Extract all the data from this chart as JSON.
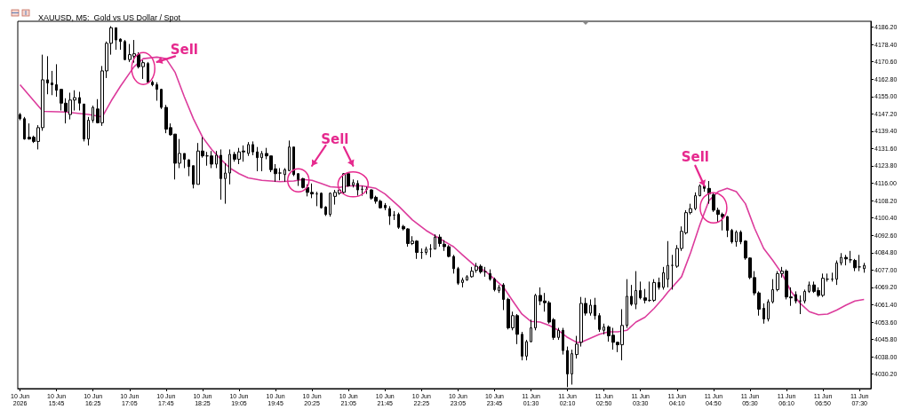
{
  "chart_data": {
    "type": "candlestick",
    "title": "XAUUSD, M5:  Gold vs US Dollar / Spot",
    "categories": [
      "10 Jun 2026",
      null,
      null,
      null,
      null,
      null,
      null,
      null,
      "10 Jun 15:45",
      null,
      null,
      null,
      null,
      null,
      null,
      null,
      "10 Jun 16:25",
      null,
      null,
      null,
      null,
      null,
      null,
      null,
      "10 Jun 17:05",
      null,
      null,
      null,
      null,
      null,
      null,
      null,
      "10 Jun 17:45",
      null,
      null,
      null,
      null,
      null,
      null,
      null,
      "10 Jun 18:25",
      null,
      null,
      null,
      null,
      null,
      null,
      null,
      "10 Jun 19:05",
      null,
      null,
      null,
      null,
      null,
      null,
      null,
      "10 Jun 19:45",
      null,
      null,
      null,
      null,
      null,
      null,
      null,
      "10 Jun 20:25",
      null,
      null,
      null,
      null,
      null,
      null,
      null,
      "10 Jun 21:05",
      null,
      null,
      null,
      null,
      null,
      null,
      null,
      "10 Jun 21:45",
      null,
      null,
      null,
      null,
      null,
      null,
      null,
      "10 Jun 22:25",
      null,
      null,
      null,
      null,
      null,
      null,
      null,
      "10 Jun 23:05",
      null,
      null,
      null,
      null,
      null,
      null,
      null,
      "10 Jun 23:45",
      null,
      null,
      null,
      null,
      null,
      null,
      null,
      "11 Jun 01:30",
      null,
      null,
      null,
      null,
      null,
      null,
      null,
      "11 Jun 02:10",
      null,
      null,
      null,
      null,
      null,
      null,
      null,
      "11 Jun 02:50",
      null,
      null,
      null,
      null,
      null,
      null,
      null,
      "11 Jun 03:30",
      null,
      null,
      null,
      null,
      null,
      null,
      null,
      "11 Jun 04:10",
      null,
      null,
      null,
      null,
      null,
      null,
      null,
      "11 Jun 04:50",
      null,
      null,
      null,
      null,
      null,
      null,
      null,
      "11 Jun 05:30",
      null,
      null,
      null,
      null,
      null,
      null,
      null,
      "11 Jun 06:10",
      null,
      null,
      null,
      null,
      null,
      null,
      null,
      "11 Jun 06:50",
      null,
      null,
      null,
      null,
      null,
      null,
      null,
      "11 Jun 07:30",
      null
    ],
    "series": [
      {
        "ohlc": [
          [
            4146.9,
            4147.6,
            4144.3,
            4145.0
          ],
          [
            4145.0,
            4145.8,
            4135.6,
            4135.9
          ],
          [
            4136.7,
            4142.9,
            4135.6,
            4135.9
          ],
          [
            4136.7,
            4137.4,
            4134.1,
            4134.8
          ],
          [
            4134.8,
            4142.1,
            4131.2,
            4141.0
          ],
          [
            4141.0,
            4173.8,
            4139.6,
            4162.5
          ],
          [
            4162.5,
            4173.1,
            4156.0,
            4161.1
          ],
          [
            4161.1,
            4166.5,
            4155.6,
            4160.3
          ],
          [
            4160.3,
            4169.5,
            4154.9,
            4157.8
          ],
          [
            4158.2,
            4158.2,
            4148.7,
            4152.0
          ],
          [
            4152.0,
            4154.2,
            4142.9,
            4148.3
          ],
          [
            4146.9,
            4156.7,
            4144.7,
            4153.4
          ],
          [
            4153.4,
            4157.8,
            4148.7,
            4154.5
          ],
          [
            4154.5,
            4157.1,
            4148.7,
            4152.0
          ],
          [
            4151.6,
            4151.6,
            4134.8,
            4135.9
          ],
          [
            4135.9,
            4145.8,
            4133.0,
            4144.3
          ],
          [
            4144.3,
            4150.9,
            4143.2,
            4150.1
          ],
          [
            4149.4,
            4153.8,
            4142.9,
            4143.2
          ],
          [
            4143.2,
            4168.7,
            4141.8,
            4166.5
          ],
          [
            4166.5,
            4179.7,
            4163.3,
            4178.9
          ],
          [
            4178.9,
            4186.6,
            4173.8,
            4185.9
          ],
          [
            4185.9,
            4185.9,
            4176.0,
            4180.4
          ],
          [
            4180.8,
            4181.1,
            4176.0,
            4179.7
          ],
          [
            4179.7,
            4180.4,
            4171.3,
            4171.6
          ],
          [
            4171.6,
            4178.6,
            4170.5,
            4173.8
          ],
          [
            4173.1,
            4180.4,
            4170.2,
            4174.2
          ],
          [
            4173.8,
            4174.9,
            4167.6,
            4168.4
          ],
          [
            4168.4,
            4171.3,
            4162.9,
            4170.2
          ],
          [
            4169.8,
            4170.5,
            4161.1,
            4161.4
          ],
          [
            4161.4,
            4162.2,
            4159.6,
            4160.3
          ],
          [
            4160.3,
            4161.4,
            4153.1,
            4158.2
          ],
          [
            4158.2,
            4158.5,
            4149.4,
            4150.1
          ],
          [
            4150.1,
            4151.2,
            4138.5,
            4140.3
          ],
          [
            4141.0,
            4142.9,
            4137.4,
            4137.8
          ],
          [
            4138.1,
            4138.1,
            4117.7,
            4125.0
          ],
          [
            4125.0,
            4135.9,
            4122.8,
            4129.4
          ],
          [
            4129.4,
            4129.4,
            4122.8,
            4126.8
          ],
          [
            4126.5,
            4126.8,
            4119.2,
            4123.5
          ],
          [
            4123.9,
            4123.9,
            4113.7,
            4115.5
          ],
          [
            4115.5,
            4134.1,
            4115.5,
            4130.5
          ],
          [
            4130.5,
            4136.7,
            4127.5,
            4128.3
          ],
          [
            4128.3,
            4130.1,
            4123.9,
            4128.3
          ],
          [
            4128.3,
            4130.5,
            4122.8,
            4124.6
          ],
          [
            4124.6,
            4130.5,
            4122.8,
            4128.6
          ],
          [
            4128.6,
            4131.2,
            4108.6,
            4118.1
          ],
          [
            4118.1,
            4125.0,
            4106.8,
            4120.6
          ],
          [
            4120.6,
            4131.2,
            4115.5,
            4129.0
          ],
          [
            4129.0,
            4130.1,
            4125.7,
            4126.8
          ],
          [
            4126.8,
            4131.9,
            4124.6,
            4130.1
          ],
          [
            4130.5,
            4133.0,
            4125.7,
            4130.1
          ],
          [
            4129.4,
            4134.5,
            4128.3,
            4133.4
          ],
          [
            4133.4,
            4134.8,
            4128.6,
            4130.1
          ],
          [
            4130.1,
            4132.3,
            4121.4,
            4127.5
          ],
          [
            4127.5,
            4130.5,
            4121.4,
            4129.4
          ],
          [
            4129.4,
            4131.9,
            4126.8,
            4128.3
          ],
          [
            4128.3,
            4128.3,
            4121.0,
            4122.1
          ],
          [
            4122.5,
            4124.6,
            4116.7,
            4120.3
          ],
          [
            4120.6,
            4122.8,
            4117.3,
            4120.6
          ],
          [
            4119.9,
            4122.8,
            4116.7,
            4122.1
          ],
          [
            4121.7,
            4135.2,
            4121.4,
            4132.3
          ],
          [
            4132.3,
            4132.3,
            4119.2,
            4119.9
          ],
          [
            4120.3,
            4120.6,
            4114.8,
            4117.7
          ],
          [
            4118.1,
            4118.4,
            4113.7,
            4114.1
          ],
          [
            4114.1,
            4115.5,
            4110.1,
            4111.9
          ],
          [
            4111.9,
            4115.9,
            4109.3,
            4111.2
          ],
          [
            4111.2,
            4112.2,
            4105.7,
            4111.2
          ],
          [
            4111.5,
            4111.9,
            4104.6,
            4105.0
          ],
          [
            4105.3,
            4105.7,
            4101.3,
            4102.0
          ],
          [
            4102.0,
            4111.9,
            4101.0,
            4111.5
          ],
          [
            4110.1,
            4113.0,
            4106.4,
            4111.9
          ],
          [
            4111.5,
            4113.7,
            4110.8,
            4113.0
          ],
          [
            4111.9,
            4120.6,
            4111.2,
            4120.3
          ],
          [
            4120.3,
            4120.6,
            4114.4,
            4114.8
          ],
          [
            4115.2,
            4117.7,
            4114.1,
            4116.3
          ],
          [
            4115.9,
            4117.3,
            4110.4,
            4113.0
          ],
          [
            4113.3,
            4114.8,
            4110.4,
            4113.3
          ],
          [
            4113.3,
            4114.4,
            4111.2,
            4113.3
          ],
          [
            4113.0,
            4113.3,
            4108.6,
            4109.3
          ],
          [
            4109.7,
            4110.4,
            4106.8,
            4107.9
          ],
          [
            4107.9,
            4108.6,
            4104.6,
            4105.0
          ],
          [
            4106.1,
            4107.1,
            4103.9,
            4105.0
          ],
          [
            4104.6,
            4105.7,
            4097.3,
            4101.3
          ],
          [
            4101.7,
            4103.5,
            4099.5,
            4101.7
          ],
          [
            4102.0,
            4102.8,
            4095.5,
            4096.2
          ],
          [
            4096.6,
            4097.3,
            4094.8,
            4095.5
          ],
          [
            4095.5,
            4095.8,
            4087.5,
            4088.9
          ],
          [
            4088.9,
            4092.2,
            4088.2,
            4090.0
          ],
          [
            4090.0,
            4090.4,
            4082.0,
            4084.9
          ],
          [
            4084.9,
            4086.7,
            4082.0,
            4084.9
          ],
          [
            4084.9,
            4087.5,
            4083.8,
            4086.4
          ],
          [
            4086.4,
            4088.6,
            4082.7,
            4086.4
          ],
          [
            4086.4,
            4093.0,
            4086.4,
            4091.8
          ],
          [
            4091.8,
            4093.0,
            4087.5,
            4088.9
          ],
          [
            4088.6,
            4090.4,
            4085.6,
            4087.5
          ],
          [
            4087.5,
            4088.2,
            4082.7,
            4083.1
          ],
          [
            4083.1,
            4083.8,
            4075.4,
            4077.6
          ],
          [
            4077.6,
            4078.4,
            4070.3,
            4071.1
          ],
          [
            4071.4,
            4073.6,
            4069.2,
            4072.5
          ],
          [
            4072.5,
            4074.7,
            4072.2,
            4074.0
          ],
          [
            4074.0,
            4078.4,
            4073.6,
            4076.5
          ],
          [
            4076.9,
            4080.2,
            4075.8,
            4078.7
          ],
          [
            4078.7,
            4079.5,
            4075.4,
            4076.2
          ],
          [
            4076.2,
            4078.4,
            4074.0,
            4076.2
          ],
          [
            4075.4,
            4077.3,
            4072.2,
            4072.9
          ],
          [
            4072.9,
            4073.6,
            4067.4,
            4068.2
          ],
          [
            4067.8,
            4070.3,
            4066.7,
            4069.2
          ],
          [
            4070.3,
            4071.1,
            4059.0,
            4063.8
          ],
          [
            4063.8,
            4064.5,
            4050.3,
            4051.0
          ],
          [
            4051.0,
            4058.3,
            4049.9,
            4056.5
          ],
          [
            4056.5,
            4057.2,
            4043.7,
            4048.1
          ],
          [
            4048.1,
            4049.2,
            4036.4,
            4038.3
          ],
          [
            4038.3,
            4045.6,
            4036.4,
            4044.8
          ],
          [
            4044.8,
            4054.7,
            4044.5,
            4051.0
          ],
          [
            4051.0,
            4066.3,
            4049.9,
            4065.6
          ],
          [
            4065.6,
            4069.2,
            4061.2,
            4063.1
          ],
          [
            4063.1,
            4066.7,
            4058.3,
            4062.3
          ],
          [
            4062.3,
            4063.1,
            4052.9,
            4053.6
          ],
          [
            4054.7,
            4055.4,
            4045.6,
            4046.7
          ],
          [
            4046.7,
            4051.0,
            4045.6,
            4049.9
          ],
          [
            4049.9,
            4051.0,
            4039.0,
            4040.8
          ],
          [
            4040.8,
            4042.6,
            4024.4,
            4030.3
          ],
          [
            4030.3,
            4041.2,
            4025.5,
            4039.4
          ],
          [
            4039.0,
            4047.4,
            4037.2,
            4043.7
          ],
          [
            4044.5,
            4064.9,
            4042.6,
            4062.0
          ],
          [
            4062.0,
            4064.5,
            4056.5,
            4057.6
          ],
          [
            4057.6,
            4063.8,
            4056.5,
            4061.2
          ],
          [
            4061.2,
            4064.5,
            4054.7,
            4056.5
          ],
          [
            4056.5,
            4057.6,
            4049.2,
            4050.3
          ],
          [
            4049.9,
            4052.9,
            4048.1,
            4051.4
          ],
          [
            4051.4,
            4052.1,
            4044.8,
            4047.4
          ],
          [
            4047.7,
            4051.0,
            4041.2,
            4044.5
          ],
          [
            4044.5,
            4044.8,
            4040.1,
            4043.4
          ],
          [
            4043.4,
            4059.4,
            4036.4,
            4052.1
          ],
          [
            4052.1,
            4072.9,
            4051.0,
            4065.2
          ],
          [
            4065.2,
            4070.3,
            4060.9,
            4061.6
          ],
          [
            4061.6,
            4076.5,
            4059.4,
            4067.8
          ],
          [
            4067.8,
            4071.8,
            4063.8,
            4064.5
          ],
          [
            4064.5,
            4068.5,
            4062.0,
            4063.4
          ],
          [
            4063.4,
            4071.8,
            4062.7,
            4063.4
          ],
          [
            4063.4,
            4072.9,
            4062.7,
            4071.4
          ],
          [
            4071.4,
            4073.6,
            4068.2,
            4069.2
          ],
          [
            4069.2,
            4078.4,
            4068.2,
            4075.8
          ],
          [
            4072.9,
            4090.0,
            4069.2,
            4079.1
          ],
          [
            4079.1,
            4083.8,
            4068.2,
            4079.1
          ],
          [
            4078.7,
            4088.2,
            4078.0,
            4086.7
          ],
          [
            4086.7,
            4096.6,
            4085.6,
            4094.4
          ],
          [
            4093.7,
            4103.9,
            4093.0,
            4102.8
          ],
          [
            4102.8,
            4106.8,
            4102.0,
            4104.6
          ],
          [
            4104.6,
            4111.9,
            4103.9,
            4110.4
          ],
          [
            4110.4,
            4115.5,
            4110.1,
            4114.8
          ],
          [
            4114.8,
            4115.5,
            4112.2,
            4113.7
          ],
          [
            4113.7,
            4117.0,
            4106.8,
            4111.2
          ],
          [
            4110.8,
            4111.9,
            4103.1,
            4103.9
          ],
          [
            4103.9,
            4105.0,
            4098.4,
            4102.0
          ],
          [
            4102.0,
            4102.8,
            4094.8,
            4101.0
          ],
          [
            4101.0,
            4101.3,
            4091.8,
            4094.8
          ],
          [
            4094.8,
            4095.5,
            4088.9,
            4089.7
          ],
          [
            4089.7,
            4094.8,
            4087.5,
            4094.0
          ],
          [
            4094.0,
            4094.8,
            4088.6,
            4089.7
          ],
          [
            4090.0,
            4090.4,
            4081.6,
            4082.4
          ],
          [
            4082.4,
            4082.7,
            4072.9,
            4073.6
          ],
          [
            4073.6,
            4076.5,
            4065.6,
            4066.7
          ],
          [
            4066.7,
            4067.4,
            4056.5,
            4059.4
          ],
          [
            4059.8,
            4062.0,
            4052.9,
            4055.0
          ],
          [
            4055.0,
            4063.8,
            4053.9,
            4062.7
          ],
          [
            4062.7,
            4072.9,
            4062.0,
            4068.2
          ],
          [
            4068.2,
            4076.5,
            4067.4,
            4075.4
          ],
          [
            4075.4,
            4078.4,
            4073.6,
            4076.5
          ],
          [
            4076.5,
            4077.3,
            4063.8,
            4064.9
          ],
          [
            4064.9,
            4069.2,
            4060.9,
            4064.5
          ],
          [
            4066.0,
            4067.4,
            4062.0,
            4063.1
          ],
          [
            4063.1,
            4065.6,
            4057.2,
            4063.1
          ],
          [
            4063.1,
            4068.2,
            4062.0,
            4067.4
          ],
          [
            4067.4,
            4071.8,
            4066.7,
            4070.3
          ],
          [
            4070.3,
            4071.8,
            4066.7,
            4067.4
          ],
          [
            4067.8,
            4069.2,
            4064.9,
            4065.6
          ],
          [
            4065.6,
            4075.4,
            4064.9,
            4073.3
          ],
          [
            4072.9,
            4075.4,
            4071.8,
            4072.9
          ],
          [
            4072.9,
            4075.8,
            4071.8,
            4072.9
          ],
          [
            4072.9,
            4081.3,
            4070.3,
            4080.2
          ],
          [
            4080.2,
            4084.6,
            4079.1,
            4082.7
          ],
          [
            4082.7,
            4083.8,
            4079.1,
            4082.0
          ],
          [
            4081.6,
            4085.6,
            4080.2,
            4081.6
          ],
          [
            4081.3,
            4082.0,
            4076.5,
            4078.0
          ],
          [
            4078.4,
            4083.8,
            4076.5,
            4078.4
          ],
          [
            4077.6,
            4080.2,
            4075.8,
            4079.1
          ]
        ]
      },
      {
        "type": "line",
        "color": "#dc3c9c",
        "marker": "none",
        "values": [
          4160.3,
          null,
          null,
          null,
          null,
          4148.3,
          null,
          null,
          null,
          null,
          4148.0,
          null,
          null,
          null,
          null,
          4146.9,
          null,
          null,
          4145.8,
          null,
          4153.1,
          null,
          4159.6,
          null,
          null,
          4168.4,
          null,
          4172.0,
          null,
          null,
          4172.7,
          null,
          4172.0,
          null,
          4165.8,
          null,
          4154.9,
          null,
          4145.0,
          null,
          4136.7,
          null,
          4131.2,
          null,
          4126.8,
          null,
          4122.8,
          null,
          4120.3,
          null,
          4118.4,
          null,
          null,
          4117.3,
          null,
          null,
          null,
          4116.7,
          null,
          null,
          4117.0,
          null,
          4117.7,
          null,
          4117.3,
          null,
          4115.9,
          null,
          4114.4,
          null,
          4114.1,
          null,
          4114.8,
          null,
          null,
          4114.8,
          null,
          null,
          4113.7,
          null,
          4111.2,
          null,
          null,
          4105.7,
          null,
          null,
          4099.5,
          null,
          null,
          4094.8,
          null,
          null,
          4091.1,
          null,
          null,
          4087.5,
          null,
          4083.8,
          null,
          null,
          4078.4,
          null,
          4076.5,
          null,
          4072.9,
          null,
          4069.2,
          null,
          4063.1,
          null,
          4057.2,
          null,
          4053.9,
          null,
          4053.6,
          null,
          4052.1,
          null,
          4049.9,
          null,
          4046.7,
          null,
          4044.5,
          4044.5,
          null,
          4046.3,
          null,
          4048.1,
          null,
          4049.2,
          null,
          4049.2,
          null,
          4049.9,
          null,
          4053.6,
          null,
          4055.8,
          null,
          4059.8,
          null,
          4064.5,
          4067.1,
          null,
          null,
          4074.0,
          null,
          4084.9,
          null,
          4097.3,
          null,
          4108.2,
          null,
          4112.2,
          null,
          4113.7,
          null,
          4112.2,
          null,
          4106.8,
          null,
          4095.8,
          null,
          4086.7,
          null,
          4081.3,
          null,
          4075.4,
          null,
          4067.4,
          null,
          4062.0,
          null,
          4058.3,
          null,
          4056.9,
          null,
          4057.2,
          null,
          4059.0,
          null,
          4061.2,
          null,
          4063.1,
          null,
          4063.8
        ]
      }
    ],
    "ylim": [
      4023.7,
      4188.8
    ],
    "yticks": [
      {
        "value": 4030.2,
        "label": "4030.20"
      },
      {
        "value": 4038.0,
        "label": "4038.00"
      },
      {
        "value": 4045.8,
        "label": "4045.80"
      },
      {
        "value": 4053.6,
        "label": "4053.60"
      },
      {
        "value": 4061.4,
        "label": "4061.40"
      },
      {
        "value": 4069.2,
        "label": "4069.20"
      },
      {
        "value": 4077.0,
        "label": "4077.00"
      },
      {
        "value": 4084.8,
        "label": "4084.80"
      },
      {
        "value": 4092.6,
        "label": "4092.60"
      },
      {
        "value": 4100.4,
        "label": "4100.40"
      },
      {
        "value": 4108.2,
        "label": "4108.20"
      },
      {
        "value": 4116.0,
        "label": "4116.00"
      },
      {
        "value": 4123.8,
        "label": "4123.80"
      },
      {
        "value": 4131.6,
        "label": "4131.60"
      },
      {
        "value": 4139.4,
        "label": "4139.40"
      },
      {
        "value": 4147.2,
        "label": "4147.20"
      },
      {
        "value": 4155.0,
        "label": "4155.00"
      },
      {
        "value": 4162.8,
        "label": "4162.80"
      },
      {
        "value": 4170.6,
        "label": "4170.60"
      },
      {
        "value": 4178.4,
        "label": "4178.40"
      },
      {
        "value": 4186.2,
        "label": "4186.20"
      }
    ],
    "annotations": [
      "Sell",
      "Sell",
      "Sell"
    ]
  }
}
